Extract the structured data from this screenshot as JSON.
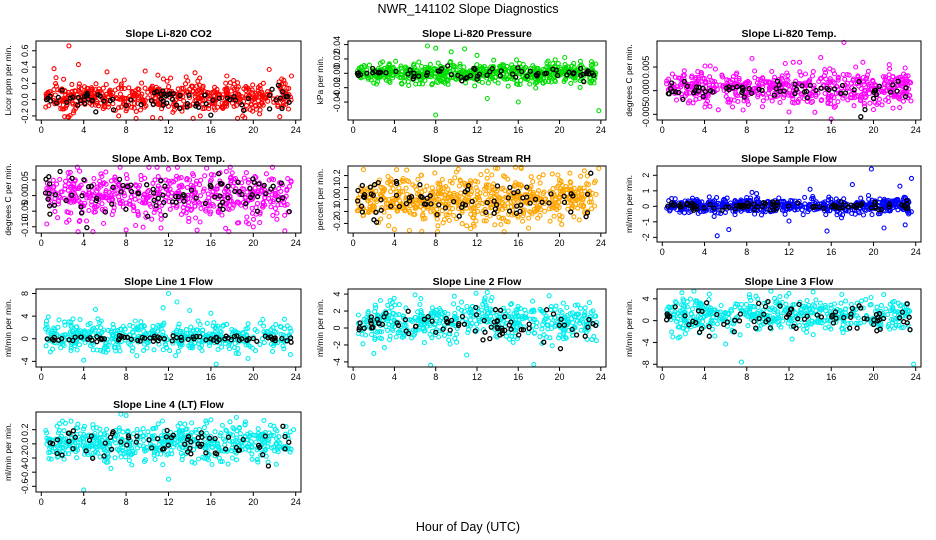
{
  "figure": {
    "title": "NWR_141102  Slope Diagnostics",
    "xlabel": "Hour of Day (UTC)"
  },
  "chart_data": [
    {
      "type": "scatter",
      "title": "Slope Li-820 CO2",
      "ylabel": "Licor ppm per min.",
      "xlim": [
        -0.5,
        24.5
      ],
      "ylim": [
        -0.25,
        0.72
      ],
      "xticks": [
        0,
        4,
        8,
        12,
        16,
        20,
        24
      ],
      "yticks": [
        -0.2,
        0.0,
        0.2,
        0.4,
        0.6
      ],
      "ytick_labels": [
        "-0.2",
        "0.0",
        "0.2",
        "0.4",
        "0.6"
      ],
      "series": [
        {
          "color": "#ff0000",
          "count": 560,
          "base": 0.03,
          "spread": 0.09,
          "extremes": [
            [
              1.2,
              0.38
            ],
            [
              2.6,
              0.66
            ],
            [
              3.5,
              0.43
            ],
            [
              6.2,
              0.34
            ],
            [
              9.8,
              0.35
            ],
            [
              11.0,
              0.3
            ],
            [
              14.5,
              0.33
            ],
            [
              17.5,
              0.29
            ],
            [
              21.5,
              0.37
            ],
            [
              23.6,
              0.29
            ],
            [
              2.2,
              -0.21
            ],
            [
              7.3,
              -0.2
            ],
            [
              10.5,
              -0.22
            ],
            [
              15.0,
              -0.2
            ],
            [
              19.0,
              -0.2
            ],
            [
              22.5,
              -0.21
            ]
          ]
        },
        {
          "color": "#000000",
          "count": 80,
          "base": 0.0,
          "spread": 0.06,
          "extremes": []
        }
      ]
    },
    {
      "type": "scatter",
      "title": "Slope Li-820 Pressure",
      "ylabel": "kPa per min.",
      "xlim": [
        -0.5,
        24.5
      ],
      "ylim": [
        -0.065,
        0.045
      ],
      "xticks": [
        0,
        4,
        8,
        12,
        16,
        20,
        24
      ],
      "yticks": [
        -0.04,
        -0.02,
        0.0,
        0.02,
        0.04
      ],
      "ytick_labels": [
        "-0.04",
        "-0.02",
        "0.00",
        "0.02",
        "0.04"
      ],
      "series": [
        {
          "color": "#00dd00",
          "count": 600,
          "base": 0.0,
          "spread": 0.007,
          "extremes": [
            [
              7.2,
              0.038
            ],
            [
              8.0,
              0.035
            ],
            [
              9.5,
              0.03
            ],
            [
              12.0,
              0.025
            ],
            [
              13.0,
              -0.035
            ],
            [
              16.0,
              -0.04
            ],
            [
              8.0,
              -0.058
            ],
            [
              23.8,
              -0.052
            ],
            [
              10.8,
              0.034
            ],
            [
              20.5,
              0.022
            ]
          ]
        },
        {
          "color": "#000000",
          "count": 70,
          "base": 0.0,
          "spread": 0.004,
          "extremes": []
        }
      ]
    },
    {
      "type": "scatter",
      "title": "Slope Li-820 Temp.",
      "ylabel": "degrees C per min.",
      "xlim": [
        -0.5,
        24.5
      ],
      "ylim": [
        -0.0062,
        0.0105
      ],
      "xticks": [
        0,
        4,
        8,
        12,
        16,
        20,
        24
      ],
      "yticks": [
        -0.005,
        0.0,
        0.005
      ],
      "ytick_labels": [
        "-0.005",
        "0.000",
        "0.005"
      ],
      "series": [
        {
          "color": "#ff00ff",
          "count": 560,
          "base": 0.0005,
          "spread": 0.0018,
          "extremes": [
            [
              8.5,
              0.0068
            ],
            [
              13.0,
              0.006
            ],
            [
              15.0,
              0.007
            ],
            [
              17.2,
              0.0102
            ],
            [
              19.0,
              0.006
            ],
            [
              21.5,
              0.0055
            ],
            [
              23.0,
              0.0048
            ],
            [
              16.0,
              -0.006
            ],
            [
              12.0,
              -0.0045
            ],
            [
              20.0,
              -0.004
            ]
          ]
        },
        {
          "color": "#000000",
          "count": 70,
          "base": 0.0,
          "spread": 0.001,
          "extremes": [
            [
              18.8,
              -0.0055
            ],
            [
              19.2,
              -0.004
            ]
          ]
        }
      ]
    },
    {
      "type": "scatter",
      "title": "Slope Amb. Box Temp.",
      "ylabel": "degrees C per min.",
      "xlim": [
        -0.5,
        24.5
      ],
      "ylim": [
        -0.12,
        0.095
      ],
      "xticks": [
        0,
        4,
        8,
        12,
        16,
        20,
        24
      ],
      "yticks": [
        -0.1,
        -0.05,
        0.0,
        0.05
      ],
      "ytick_labels": [
        "-0.10",
        "-0.05",
        "0.00",
        "0.05"
      ],
      "series": [
        {
          "color": "#ff00ff",
          "count": 540,
          "base": 0.0,
          "spread": 0.04,
          "extremes": [
            [
              12.0,
              0.085
            ],
            [
              8.0,
              -0.11
            ],
            [
              20.0,
              -0.1
            ]
          ]
        },
        {
          "color": "#000000",
          "count": 90,
          "base": 0.0,
          "spread": 0.035,
          "extremes": []
        }
      ]
    },
    {
      "type": "scatter",
      "title": "Slope Gas Stream RH",
      "ylabel": "percent per min.",
      "xlim": [
        -0.5,
        24.5
      ],
      "ylim": [
        -0.28,
        0.28
      ],
      "xticks": [
        0,
        4,
        8,
        12,
        16,
        20,
        24
      ],
      "yticks": [
        -0.2,
        -0.1,
        0.0,
        0.1,
        0.2
      ],
      "ytick_labels": [
        "-0.2",
        "-0.1",
        "0.0",
        "0.1",
        "0.2"
      ],
      "series": [
        {
          "color": "#ffa500",
          "count": 640,
          "base": 0.0,
          "spread": 0.095,
          "extremes": [
            [
              1.0,
              0.25
            ],
            [
              10.0,
              0.23
            ],
            [
              14.0,
              0.26
            ],
            [
              21.0,
              0.22
            ],
            [
              4.0,
              -0.25
            ],
            [
              11.0,
              -0.22
            ],
            [
              17.0,
              -0.24
            ],
            [
              23.8,
              0.26
            ]
          ]
        },
        {
          "color": "#000000",
          "count": 80,
          "base": 0.0,
          "spread": 0.08,
          "extremes": []
        }
      ]
    },
    {
      "type": "scatter",
      "title": "Slope Sample Flow",
      "ylabel": "ml/min per min.",
      "xlim": [
        -0.5,
        24.5
      ],
      "ylim": [
        -2.3,
        2.6
      ],
      "xticks": [
        0,
        4,
        8,
        12,
        16,
        20,
        24
      ],
      "yticks": [
        -2,
        -1,
        0,
        1,
        2
      ],
      "ytick_labels": [
        "-2",
        "-1",
        "0",
        "1",
        "2"
      ],
      "series": [
        {
          "color": "#0000ff",
          "count": 560,
          "base": 0.0,
          "spread": 0.25,
          "extremes": [
            [
              19.8,
              2.4
            ],
            [
              14.0,
              1.1
            ],
            [
              18.0,
              1.4
            ],
            [
              23.6,
              1.8
            ],
            [
              22.5,
              1.3
            ],
            [
              5.2,
              -1.9
            ],
            [
              6.3,
              -1.5
            ],
            [
              15.6,
              -1.6
            ],
            [
              21.0,
              -1.4
            ],
            [
              23.0,
              -1.2
            ],
            [
              12.0,
              -0.95
            ],
            [
              8.5,
              0.9
            ]
          ]
        },
        {
          "color": "#000000",
          "count": 90,
          "base": 0.0,
          "spread": 0.15,
          "extremes": []
        }
      ]
    },
    {
      "type": "scatter",
      "title": "Slope Line 1 Flow",
      "ylabel": "ml/min per min.",
      "xlim": [
        -0.5,
        24.5
      ],
      "ylim": [
        -5.0,
        8.8
      ],
      "xticks": [
        0,
        4,
        8,
        12,
        16,
        20,
        24
      ],
      "yticks": [
        -4,
        0,
        4,
        8
      ],
      "ytick_labels": [
        "-4",
        "0",
        "4",
        "8"
      ],
      "series": [
        {
          "color": "#00eeee",
          "count": 480,
          "base": 0.3,
          "spread": 1.3,
          "extremes": [
            [
              12.0,
              8.0
            ],
            [
              12.8,
              6.5
            ],
            [
              11.5,
              5.5
            ],
            [
              14.0,
              5.0
            ],
            [
              16.0,
              4.5
            ],
            [
              4.0,
              -3.8
            ],
            [
              9.0,
              -3.0
            ],
            [
              16.5,
              -4.5
            ],
            [
              19.5,
              -3.5
            ],
            [
              23.5,
              -2.8
            ]
          ]
        },
        {
          "color": "#000000",
          "count": 80,
          "base": 0.0,
          "spread": 0.3,
          "extremes": []
        }
      ]
    },
    {
      "type": "scatter",
      "title": "Slope Line 2 Flow",
      "ylabel": "ml/min per min.",
      "xlim": [
        -0.5,
        24.5
      ],
      "ylim": [
        -4.6,
        4.6
      ],
      "xticks": [
        0,
        4,
        8,
        12,
        16,
        20,
        24
      ],
      "yticks": [
        -4,
        -2,
        0,
        2,
        4
      ],
      "ytick_labels": [
        "-4",
        "-2",
        "0",
        "2",
        "4"
      ],
      "series": [
        {
          "color": "#00eeee",
          "count": 500,
          "base": 0.8,
          "spread": 1.1,
          "extremes": [
            [
              7.5,
              -4.4
            ],
            [
              17.5,
              -4.3
            ],
            [
              6.0,
              3.9
            ],
            [
              13.0,
              4.2
            ],
            [
              19.0,
              3.8
            ],
            [
              2.0,
              -3.0
            ],
            [
              11.0,
              -3.2
            ]
          ]
        },
        {
          "color": "#000000",
          "count": 80,
          "base": 0.3,
          "spread": 0.9,
          "extremes": []
        }
      ]
    },
    {
      "type": "scatter",
      "title": "Slope Line 3 Flow",
      "ylabel": "ml/min per min.",
      "xlim": [
        -0.5,
        24.5
      ],
      "ylim": [
        -8.5,
        5.8
      ],
      "xticks": [
        0,
        4,
        8,
        12,
        16,
        20,
        24
      ],
      "yticks": [
        -8,
        -4,
        0,
        4
      ],
      "ytick_labels": [
        "-8",
        "-4",
        "0",
        "4"
      ],
      "series": [
        {
          "color": "#00eeee",
          "count": 500,
          "base": 1.0,
          "spread": 1.5,
          "extremes": [
            [
              7.5,
              -7.6
            ],
            [
              23.8,
              -8.0
            ],
            [
              3.0,
              5.4
            ],
            [
              12.0,
              5.0
            ],
            [
              17.0,
              4.8
            ],
            [
              1.0,
              -3.0
            ],
            [
              6.0,
              -4.3
            ]
          ]
        },
        {
          "color": "#000000",
          "count": 80,
          "base": 0.5,
          "spread": 1.3,
          "extremes": []
        }
      ]
    },
    {
      "type": "scatter",
      "title": "Slope Line 4 (LT) Flow",
      "ylabel": "ml/min per min.",
      "xlim": [
        -0.5,
        24.5
      ],
      "ylim": [
        -0.68,
        0.45
      ],
      "xticks": [
        0,
        4,
        8,
        12,
        16,
        20,
        24
      ],
      "yticks": [
        -0.6,
        -0.4,
        -0.2,
        0.0,
        0.2
      ],
      "ytick_labels": [
        "-0.6",
        "-0.4",
        "-0.2",
        "0.0",
        "0.2"
      ],
      "series": [
        {
          "color": "#00eeee",
          "count": 560,
          "base": 0.02,
          "spread": 0.13,
          "extremes": [
            [
              4.0,
              -0.65
            ],
            [
              7.5,
              0.42
            ],
            [
              8.0,
              0.4
            ],
            [
              12.0,
              -0.5
            ],
            [
              2.0,
              0.32
            ],
            [
              16.0,
              0.34
            ],
            [
              21.0,
              0.33
            ],
            [
              23.8,
              0.2
            ]
          ]
        },
        {
          "color": "#000000",
          "count": 70,
          "base": 0.0,
          "spread": 0.1,
          "extremes": []
        }
      ]
    }
  ]
}
